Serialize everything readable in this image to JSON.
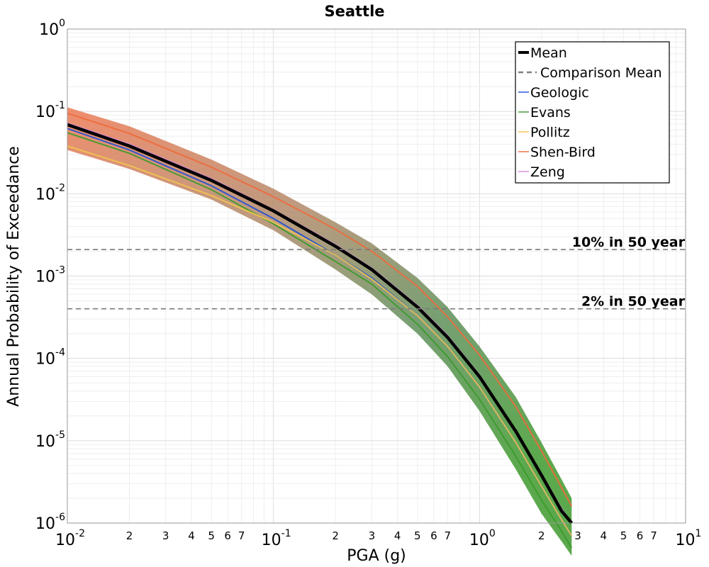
{
  "chart_data": {
    "type": "line",
    "title": "Seattle",
    "xlabel": "PGA (g)",
    "ylabel": "Annual Probability of Exceedance",
    "xscale": "log",
    "yscale": "log",
    "xlim": [
      0.01,
      10
    ],
    "ylim": [
      1e-06,
      1
    ],
    "grid": true,
    "legend_position": "top-right",
    "x_ticks": [
      {
        "value": 0.01,
        "base": "10",
        "exp": "-2"
      },
      {
        "value": 0.1,
        "base": "10",
        "exp": "-1"
      },
      {
        "value": 1,
        "base": "10",
        "exp": "0"
      },
      {
        "value": 10,
        "base": "10",
        "exp": "1"
      }
    ],
    "x_minor_labels": [
      "2",
      "3",
      "4",
      "5",
      "6",
      "7"
    ],
    "y_ticks": [
      {
        "value": 1,
        "base": "10",
        "exp": "0"
      },
      {
        "value": 0.1,
        "base": "10",
        "exp": "-1"
      },
      {
        "value": 0.01,
        "base": "10",
        "exp": "-2"
      },
      {
        "value": 0.001,
        "base": "10",
        "exp": "-3"
      },
      {
        "value": 0.0001,
        "base": "10",
        "exp": "-4"
      },
      {
        "value": 1e-05,
        "base": "10",
        "exp": "-5"
      },
      {
        "value": 1e-06,
        "base": "10",
        "exp": "-6"
      }
    ],
    "x": [
      0.01,
      0.02,
      0.05,
      0.1,
      0.2,
      0.3,
      0.5,
      0.7,
      1.0,
      1.5,
      2.0,
      2.5,
      2.8
    ],
    "series": [
      {
        "name": "Mean",
        "color": "#000000",
        "style": "solid",
        "values": [
          0.069,
          0.038,
          0.0145,
          0.0062,
          0.0023,
          0.0012,
          0.00042,
          0.00018,
          6e-05,
          1.3e-05,
          3.8e-06,
          1.4e-06,
          1e-06
        ]
      },
      {
        "name": "Geologic",
        "color": "#1f4fd6",
        "style": "thin",
        "values": [
          0.062,
          0.034,
          0.0125,
          0.005,
          0.0018,
          0.00095,
          0.00033,
          0.00014,
          4.5e-05,
          9.5e-06,
          2.8e-06,
          1.1e-06,
          7e-07
        ]
      },
      {
        "name": "Evans",
        "color": "#3a9a2a",
        "style": "thin",
        "values": [
          0.055,
          0.031,
          0.0112,
          0.0043,
          0.0015,
          0.0008,
          0.00026,
          0.000105,
          3.2e-05,
          6.5e-06,
          1.9e-06,
          8e-07,
          5e-07
        ]
      },
      {
        "name": "Pollitz",
        "color": "#f2c44f",
        "style": "thin",
        "values": [
          0.038,
          0.022,
          0.0095,
          0.0045,
          0.0018,
          0.00092,
          0.00033,
          0.00014,
          4.5e-05,
          9.5e-06,
          2.8e-06,
          1.1e-06,
          7e-07
        ]
      },
      {
        "name": "Shen-Bird",
        "color": "#ee6a3c",
        "style": "thin",
        "values": [
          0.095,
          0.054,
          0.021,
          0.0092,
          0.0037,
          0.002,
          0.00075,
          0.00032,
          0.00011,
          2.6e-05,
          7.5e-06,
          2.7e-06,
          1.6e-06
        ]
      },
      {
        "name": "Zeng",
        "color": "#d98ae0",
        "style": "thin",
        "values": [
          0.072,
          0.04,
          0.0152,
          0.0064,
          0.0024,
          0.00125,
          0.00044,
          0.00019,
          6.3e-05,
          1.35e-05,
          4e-06,
          1.5e-06,
          1e-06
        ]
      }
    ],
    "band": {
      "upper": [
        0.112,
        0.066,
        0.026,
        0.0115,
        0.0045,
        0.0025,
        0.00095,
        0.00042,
        0.00014,
        3.4e-05,
        9.5e-06,
        3.4e-06,
        2e-06
      ],
      "lower": [
        0.034,
        0.02,
        0.0085,
        0.0036,
        0.0012,
        0.0006,
        0.0002,
        8e-05,
        2.3e-05,
        4.5e-06,
        1.3e-06,
        6e-07,
        4e-07
      ]
    },
    "legend_entries": [
      {
        "label": "Mean",
        "color": "#000000",
        "style": "thick"
      },
      {
        "label": "Comparison Mean",
        "color": "#808080",
        "style": "dashed"
      },
      {
        "label": "Geologic",
        "color": "#1f4fd6",
        "style": "thin"
      },
      {
        "label": "Evans",
        "color": "#3a9a2a",
        "style": "thin"
      },
      {
        "label": "Pollitz",
        "color": "#f2c44f",
        "style": "thin"
      },
      {
        "label": "Shen-Bird",
        "color": "#ee6a3c",
        "style": "thin"
      },
      {
        "label": "Zeng",
        "color": "#d98ae0",
        "style": "thin"
      }
    ],
    "reference_lines": [
      {
        "label": "10% in 50 year",
        "y": 0.0021
      },
      {
        "label": "2% in 50 year",
        "y": 0.0004
      }
    ]
  }
}
